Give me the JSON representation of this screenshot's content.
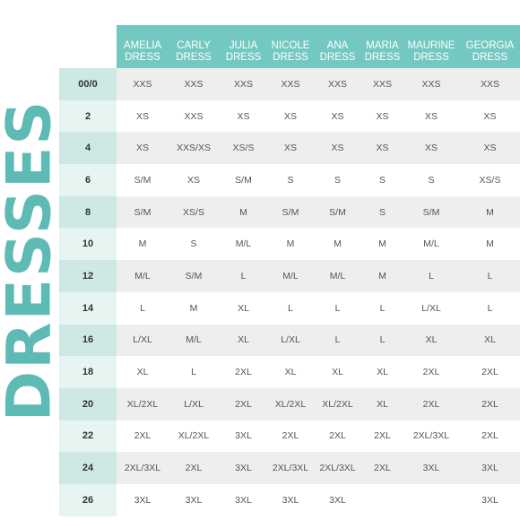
{
  "title": "DRESSES",
  "columns": [
    [
      "AMELIA",
      "DRESS"
    ],
    [
      "CARLY",
      "DRESS"
    ],
    [
      "JULIA",
      "DRESS"
    ],
    [
      "NICOLE",
      "DRESS"
    ],
    [
      "ANA",
      "DRESS"
    ],
    [
      "MARIA",
      "DRESS"
    ],
    [
      "MAURINE",
      "DRESS"
    ],
    [
      "GEORGIA",
      "DRESS"
    ]
  ],
  "rows": [
    {
      "size": "00/0",
      "values": [
        "XXS",
        "XXS",
        "XXS",
        "XXS",
        "XXS",
        "XXS",
        "XXS",
        "XXS"
      ]
    },
    {
      "size": "2",
      "values": [
        "XS",
        "XXS",
        "XS",
        "XS",
        "XS",
        "XS",
        "XS",
        "XS"
      ]
    },
    {
      "size": "4",
      "values": [
        "XS",
        "XXS/XS",
        "XS/S",
        "XS",
        "XS",
        "XS",
        "XS",
        "XS"
      ]
    },
    {
      "size": "6",
      "values": [
        "S/M",
        "XS",
        "S/M",
        "S",
        "S",
        "S",
        "S",
        "XS/S"
      ]
    },
    {
      "size": "8",
      "values": [
        "S/M",
        "XS/S",
        "M",
        "S/M",
        "S/M",
        "S",
        "S/M",
        "M"
      ]
    },
    {
      "size": "10",
      "values": [
        "M",
        "S",
        "M/L",
        "M",
        "M",
        "M",
        "M/L",
        "M"
      ]
    },
    {
      "size": "12",
      "values": [
        "M/L",
        "S/M",
        "L",
        "M/L",
        "M/L",
        "M",
        "L",
        "L"
      ]
    },
    {
      "size": "14",
      "values": [
        "L",
        "M",
        "XL",
        "L",
        "L",
        "L",
        "L/XL",
        "L"
      ]
    },
    {
      "size": "16",
      "values": [
        "L/XL",
        "M/L",
        "XL",
        "L/XL",
        "L",
        "L",
        "XL",
        "XL"
      ]
    },
    {
      "size": "18",
      "values": [
        "XL",
        "L",
        "2XL",
        "XL",
        "XL",
        "XL",
        "2XL",
        "2XL"
      ]
    },
    {
      "size": "20",
      "values": [
        "XL/2XL",
        "L/XL",
        "2XL",
        "XL/2XL",
        "XL/2XL",
        "XL",
        "2XL",
        "2XL"
      ]
    },
    {
      "size": "22",
      "values": [
        "2XL",
        "XL/2XL",
        "3XL",
        "2XL",
        "2XL",
        "2XL",
        "2XL/3XL",
        "2XL"
      ]
    },
    {
      "size": "24",
      "values": [
        "2XL/3XL",
        "2XL",
        "3XL",
        "2XL/3XL",
        "2XL/3XL",
        "2XL",
        "3XL",
        "3XL"
      ]
    },
    {
      "size": "26",
      "values": [
        "3XL",
        "3XL",
        "3XL",
        "3XL",
        "3XL",
        "",
        "",
        "3XL"
      ]
    }
  ],
  "colors": {
    "title": "#5dbab4",
    "header": "#73c9c2",
    "size_column": "#e6f4f2",
    "size_column_alt": "#cde8e5",
    "row_alt": "#eeeeee"
  }
}
